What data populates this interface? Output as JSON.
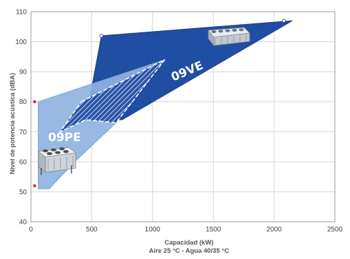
{
  "chart_data": {
    "type": "area",
    "xlabel": "Capacidad (kW)",
    "xlabel_sub": "Aire 25 °C - Agua 40/35 °C",
    "ylabel": "Nivel de potencia acústica (dBA)",
    "xlim": [
      0,
      2500
    ],
    "ylim": [
      40,
      110
    ],
    "xticks": [
      "0",
      "500",
      "1000",
      "1500",
      "2000",
      "2500"
    ],
    "yticks": [
      "40",
      "50",
      "60",
      "70",
      "80",
      "90",
      "100",
      "110"
    ],
    "grid": true,
    "series": [
      {
        "name": "09VE",
        "color": "#1f4ea3",
        "polygon": [
          [
            580,
            102
          ],
          [
            2150,
            107
          ],
          [
            750,
            74
          ],
          [
            450,
            74
          ]
        ],
        "unit_icon": "dry-cooler-unit-icon"
      },
      {
        "name": "09PE",
        "color": "#8fb3e0",
        "polygon": [
          [
            60,
            80
          ],
          [
            1100,
            94
          ],
          [
            700,
            73
          ],
          [
            360,
            60
          ],
          [
            150,
            51
          ],
          [
            60,
            51
          ]
        ],
        "unit_icon": "condenser-unit-icon"
      }
    ],
    "markers": [
      {
        "x": 580,
        "y": 102,
        "style": "open-circle"
      },
      {
        "x": 2080,
        "y": 107,
        "style": "open-circle"
      },
      {
        "x": 30,
        "y": 80,
        "style": "red-dot"
      },
      {
        "x": 30,
        "y": 52,
        "style": "red-dot"
      }
    ]
  }
}
